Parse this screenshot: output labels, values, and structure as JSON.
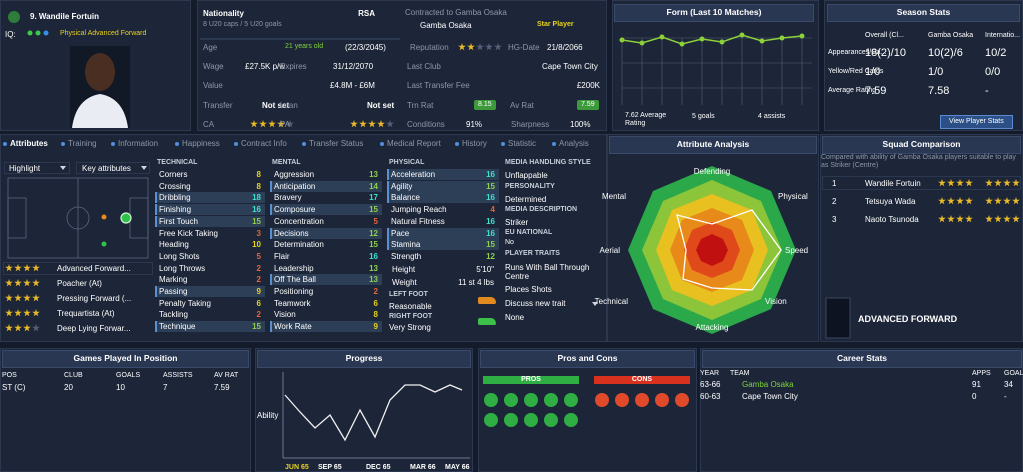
{
  "player": {
    "name": "9. Wandile Fortuin",
    "iq": "IQ:",
    "role": "Physical Advanced Forward"
  },
  "info": {
    "nationality_label": "Nationality",
    "nationality": "RSA",
    "caps": "8 U20 caps / 5 U20 goals",
    "contract": "Contracted to Gamba Osaka",
    "club": "Gamba Osaka",
    "status": "Star Player",
    "age_label": "Age",
    "age": "21 years old",
    "dob": "(22/3/2045)",
    "reputation_label": "Reputation",
    "hg_label": "HG-Date",
    "hg": "21/8/2066",
    "wage_label": "Wage",
    "wage": "£27.5K p/w",
    "expires_label": "Expires",
    "expires": "31/12/2070",
    "last_club_label": "Last Club",
    "last_club": "Cape Town City",
    "value_label": "Value",
    "value": "£4.8M - £6M",
    "fee_label": "Last Transfer Fee",
    "fee": "£200K",
    "transfer_label": "Transfer",
    "transfer": "Not set",
    "loan_label": "Loan",
    "loan": "Not set",
    "trn_label": "Trn Rat",
    "trn": 8.15,
    "av_label": "Av Rat",
    "av": 7.59,
    "ca_label": "CA",
    "pa_label": "PA",
    "conditions_label": "Conditions",
    "conditions": "91%",
    "sharpness_label": "Sharpness",
    "sharpness": "100%"
  },
  "form": {
    "title": "Form (Last 10 Matches)",
    "average": "7.62 Average Rating",
    "goals": "5 goals",
    "assists": "4 assists"
  },
  "season": {
    "title": "Season Stats",
    "columns": [
      "Overall (Cl...",
      "Gamba Osaka",
      "Internatio..."
    ],
    "rows": [
      {
        "label": "Appearances/Ga...",
        "values": [
          "18(2)/10",
          "10(2)/6",
          "10/2"
        ]
      },
      {
        "label": "Yellow/Red Cards",
        "values": [
          "1/0",
          "1/0",
          "0/0"
        ]
      },
      {
        "label": "Average Rating",
        "values": [
          "7.59",
          "7.58",
          "-"
        ]
      }
    ],
    "button": "View Player Stats"
  },
  "tabs": [
    "Attributes",
    "Training",
    "Information",
    "Happiness",
    "Contract Info",
    "Transfer Status",
    "Medical Report",
    "History",
    "Statistic",
    "Analysis"
  ],
  "positions": {
    "highlight": "Highlight",
    "key": "Key attributes",
    "roles": [
      "Advanced Forward...",
      "Poacher (At)",
      "Pressing Forward (...",
      "Trequartista (At)",
      "Deep Lying Forwar..."
    ]
  },
  "technical": {
    "title": "TECHNICAL",
    "items": [
      {
        "name": "Corners",
        "value": 8
      },
      {
        "name": "Crossing",
        "value": 8
      },
      {
        "name": "Dribbling",
        "value": 18,
        "key": true
      },
      {
        "name": "Finishing",
        "value": 16,
        "key": true
      },
      {
        "name": "First Touch",
        "value": 15,
        "key": true
      },
      {
        "name": "Free Kick Taking",
        "value": 3
      },
      {
        "name": "Heading",
        "value": 10
      },
      {
        "name": "Long Shots",
        "value": 5
      },
      {
        "name": "Long Throws",
        "value": 2
      },
      {
        "name": "Marking",
        "value": 2
      },
      {
        "name": "Passing",
        "value": 9,
        "key": true
      },
      {
        "name": "Penalty Taking",
        "value": 6
      },
      {
        "name": "Tackling",
        "value": 2
      },
      {
        "name": "Technique",
        "value": 15,
        "key": true
      }
    ]
  },
  "mental": {
    "title": "MENTAL",
    "items": [
      {
        "name": "Aggression",
        "value": 13
      },
      {
        "name": "Anticipation",
        "value": 14,
        "key": true
      },
      {
        "name": "Bravery",
        "value": 17
      },
      {
        "name": "Composure",
        "value": 15,
        "key": true
      },
      {
        "name": "Concentration",
        "value": 5
      },
      {
        "name": "Decisions",
        "value": 12,
        "key": true
      },
      {
        "name": "Determination",
        "value": 15
      },
      {
        "name": "Flair",
        "value": 16
      },
      {
        "name": "Leadership",
        "value": 13
      },
      {
        "name": "Off The Ball",
        "value": 13,
        "key": true
      },
      {
        "name": "Positioning",
        "value": 2
      },
      {
        "name": "Teamwork",
        "value": 6
      },
      {
        "name": "Vision",
        "value": 8
      },
      {
        "name": "Work Rate",
        "value": 9,
        "key": true
      }
    ]
  },
  "physical": {
    "title": "PHYSICAL",
    "items": [
      {
        "name": "Acceleration",
        "value": 16,
        "key": true
      },
      {
        "name": "Agility",
        "value": 15,
        "key": true
      },
      {
        "name": "Balance",
        "value": 16,
        "key": true
      },
      {
        "name": "Jumping Reach",
        "value": 4
      },
      {
        "name": "Natural Fitness",
        "value": 16
      },
      {
        "name": "Pace",
        "value": 16,
        "key": true
      },
      {
        "name": "Stamina",
        "value": 15,
        "key": true
      },
      {
        "name": "Strength",
        "value": 12
      }
    ],
    "height_label": "Height",
    "height": "5'10\"",
    "weight_label": "Weight",
    "weight": "11 st 4 lbs",
    "left_foot_label": "LEFT FOOT",
    "left_foot": "Reasonable",
    "right_foot_label": "RIGHT FOOT",
    "right_foot": "Very Strong"
  },
  "media": {
    "style_label": "MEDIA HANDLING STYLE",
    "style": "Unflappable",
    "personality_label": "PERSONALITY",
    "personality": "Determined",
    "description_label": "MEDIA DESCRIPTION",
    "description": "Striker",
    "eu_label": "EU NATIONAL",
    "eu": "No",
    "traits_label": "PLAYER TRAITS",
    "traits": [
      "Runs With Ball Through Centre",
      "Places Shots"
    ],
    "discuss": "Discuss new trait",
    "none": "None"
  },
  "analysis": {
    "title": "Attribute Analysis",
    "axes": [
      "Defending",
      "Physical",
      "Speed",
      "Vision",
      "Attacking",
      "Technical",
      "Aerial",
      "Mental"
    ]
  },
  "squad": {
    "title": "Squad Comparison",
    "description": "Compared with ability of Gamba Osaka players suitable to play as Striker (Centre)",
    "players": [
      {
        "rank": 1,
        "name": "Wandile Fortuin"
      },
      {
        "rank": 2,
        "name": "Tetsuya Wada"
      },
      {
        "rank": 3,
        "name": "Naoto Tsunoda"
      }
    ],
    "role": "ADVANCED FORWARD"
  },
  "games": {
    "title": "Games Played In Position",
    "columns": [
      "POS",
      "CLUB",
      "GOALS",
      "ASSISTS",
      "AV RAT"
    ],
    "row": [
      "ST (C)",
      20,
      10,
      7,
      7.59
    ]
  },
  "progress": {
    "title": "Progress",
    "axis": "Ability",
    "months": [
      "JUN 65",
      "SEP 65",
      "DEC 65",
      "MAR 66",
      "MAY 66"
    ]
  },
  "pros_cons": {
    "title": "Pros and Cons",
    "pros": "PROS",
    "cons": "CONS"
  },
  "career": {
    "title": "Career Stats",
    "columns": [
      "YEAR",
      "TEAM",
      "APPS",
      "GOALS"
    ],
    "rows": [
      [
        "63-66",
        "Gamba Osaka",
        91,
        34
      ],
      [
        "60-63",
        "Cape Town City",
        0,
        "-"
      ]
    ]
  }
}
